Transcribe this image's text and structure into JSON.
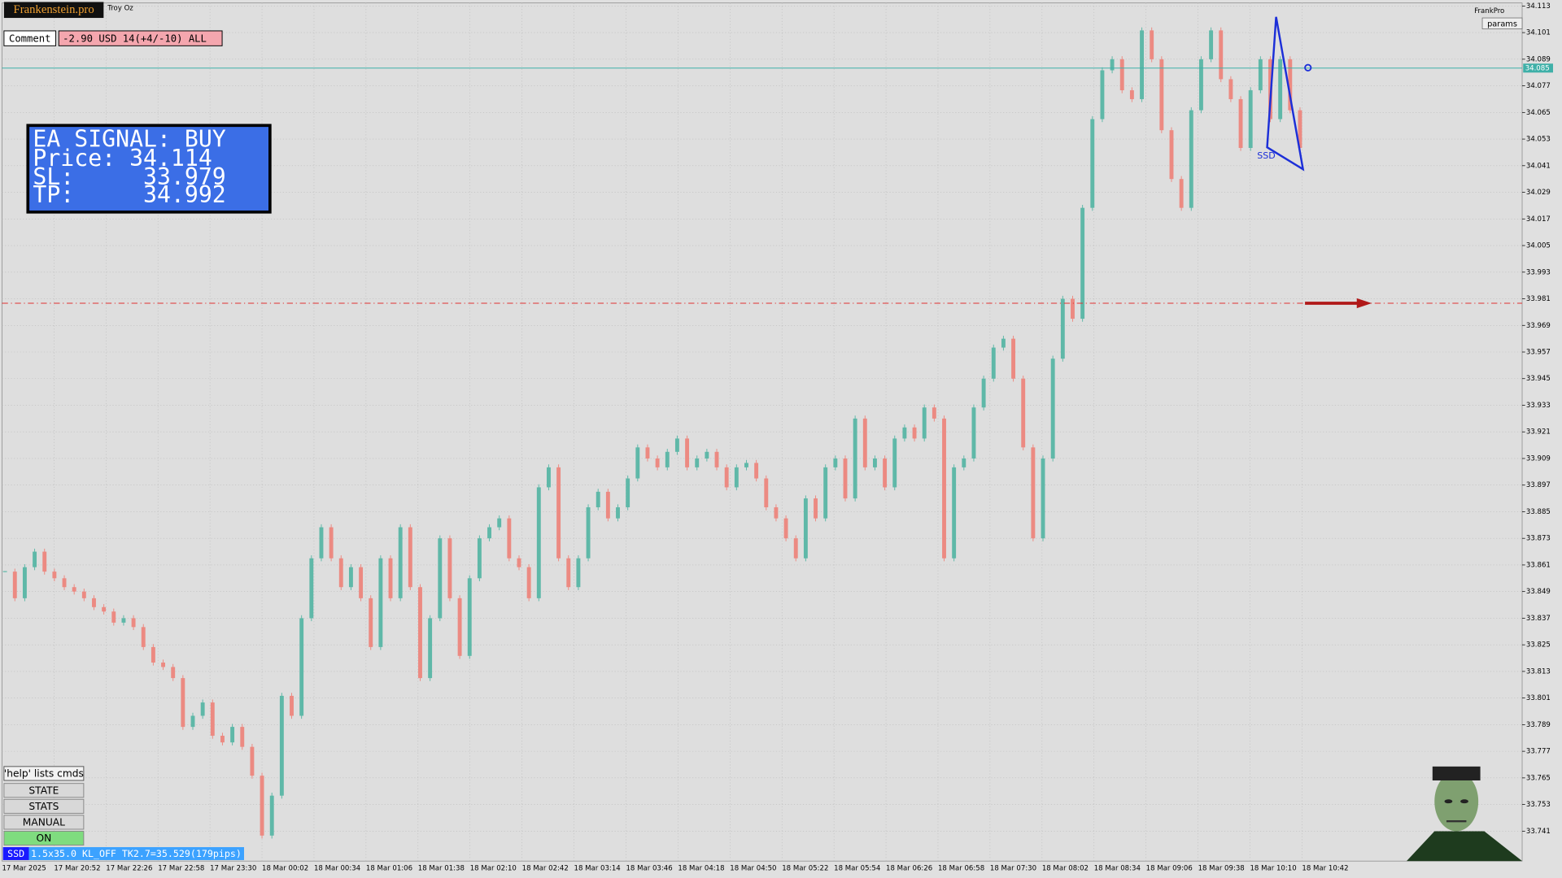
{
  "header": {
    "logo": "Frankenstein.pro",
    "symbol": "Troy Oz",
    "comment_label": "Comment",
    "comment_value": "-2.90 USD 14(+4/-10) ALL"
  },
  "signal": {
    "title": "EA SIGNAL: BUY",
    "price": "Price: 34.114",
    "sl": "SL:     33.979",
    "tp": "TP:     34.992"
  },
  "buttons": [
    "'help' lists cmds",
    "STATE",
    "STATS",
    "MANUAL",
    "ON"
  ],
  "status": {
    "tag": "SSD",
    "text": "1.5x35.0 KL_OFF TK2.7=35.529(179pips)"
  },
  "top_right": {
    "brand": "FrankPro",
    "params": "params"
  },
  "pattern_label": "SSD",
  "chart_data": {
    "type": "candlestick",
    "x_labels": [
      "17 Mar 2025",
      "17 Mar 20:52",
      "17 Mar 22:26",
      "17 Mar 22:58",
      "17 Mar 23:30",
      "18 Mar 00:02",
      "18 Mar 00:34",
      "18 Mar 01:06",
      "18 Mar 01:38",
      "18 Mar 02:10",
      "18 Mar 02:42",
      "18 Mar 03:14",
      "18 Mar 03:46",
      "18 Mar 04:18",
      "18 Mar 04:50",
      "18 Mar 05:22",
      "18 Mar 05:54",
      "18 Mar 06:26",
      "18 Mar 06:58",
      "18 Mar 07:30",
      "18 Mar 08:02",
      "18 Mar 08:34",
      "18 Mar 09:06",
      "18 Mar 09:38",
      "18 Mar 10:10",
      "18 Mar 10:42"
    ],
    "values": [
      33.858,
      33.846,
      33.86,
      33.867,
      33.858,
      33.855,
      33.851,
      33.849,
      33.846,
      33.842,
      33.84,
      33.835,
      33.837,
      33.833,
      33.824,
      33.817,
      33.815,
      33.81,
      33.788,
      33.793,
      33.799,
      33.784,
      33.781,
      33.788,
      33.779,
      33.766,
      33.739,
      33.757,
      33.802,
      33.793,
      33.837,
      33.864,
      33.878,
      33.864,
      33.851,
      33.86,
      33.846,
      33.824,
      33.864,
      33.846,
      33.878,
      33.851,
      33.81,
      33.837,
      33.873,
      33.846,
      33.82,
      33.855,
      33.873,
      33.878,
      33.882,
      33.864,
      33.86,
      33.846,
      33.896,
      33.905,
      33.864,
      33.851,
      33.864,
      33.887,
      33.894,
      33.882,
      33.887,
      33.9,
      33.914,
      33.909,
      33.905,
      33.912,
      33.918,
      33.905,
      33.909,
      33.912,
      33.905,
      33.896,
      33.905,
      33.907,
      33.9,
      33.887,
      33.882,
      33.873,
      33.864,
      33.891,
      33.882,
      33.905,
      33.909,
      33.891,
      33.927,
      33.905,
      33.909,
      33.896,
      33.918,
      33.923,
      33.918,
      33.932,
      33.927,
      33.864,
      33.905,
      33.909,
      33.932,
      33.945,
      33.959,
      33.963,
      33.945,
      33.914,
      33.873,
      33.909,
      33.954,
      33.981,
      33.972,
      34.022,
      34.062,
      34.084,
      34.089,
      34.075,
      34.071,
      34.102,
      34.089,
      34.057,
      34.035,
      34.022,
      34.066,
      34.089,
      34.102,
      34.08,
      34.071,
      34.049,
      34.075,
      34.089,
      34.062,
      34.089,
      34.066,
      34.049
    ],
    "up_color": "#5fb8a8",
    "down_color": "#ec8a82",
    "ylim": [
      33.7275,
      34.1157
    ],
    "yticks": [
      34.113,
      34.101,
      34.089,
      34.077,
      34.065,
      34.053,
      34.041,
      34.029,
      34.017,
      34.005,
      33.993,
      33.981,
      33.969,
      33.957,
      33.945,
      33.933,
      33.921,
      33.909,
      33.897,
      33.885,
      33.873,
      33.861,
      33.849,
      33.837,
      33.825,
      33.813,
      33.801,
      33.789,
      33.777,
      33.765,
      33.753,
      33.741
    ],
    "current_price": 34.085,
    "stop_line": 33.979,
    "grid": true
  }
}
